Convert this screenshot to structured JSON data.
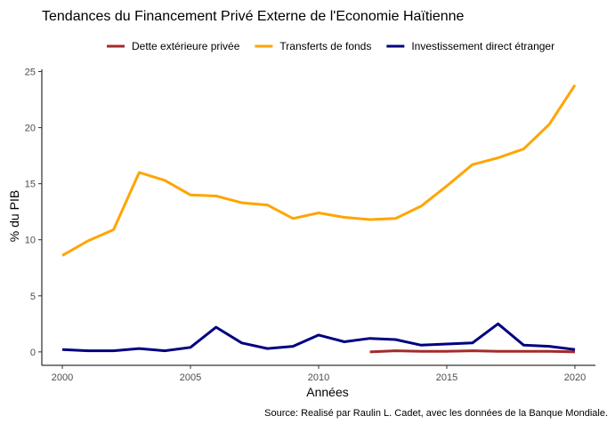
{
  "chart_data": {
    "type": "line",
    "title": "Tendances du Financement Privé Externe de l'Economie Haïtienne",
    "xlabel": "Années",
    "ylabel": "% du PIB",
    "caption": "Source: Realisé par Raulin L. Cadet, avec les données de la Banque Mondiale.",
    "xlim": [
      1999.2,
      2020.8
    ],
    "ylim": [
      -1.2,
      25.2
    ],
    "xticks": [
      2000,
      2005,
      2010,
      2015,
      2020
    ],
    "yticks": [
      0,
      5,
      10,
      15,
      20,
      25
    ],
    "xtick_labels": [
      "2000",
      "2005",
      "2010",
      "2015",
      "2020"
    ],
    "ytick_labels": [
      "0",
      "5",
      "10",
      "15",
      "20",
      "25"
    ],
    "grid": false,
    "legend_position": "top",
    "series": [
      {
        "name": "Dette extérieure privée",
        "color": "#a52a2a",
        "x": [
          2012,
          2013,
          2014,
          2015,
          2016,
          2017,
          2018,
          2019,
          2020
        ],
        "y": [
          0.0,
          0.1,
          0.05,
          0.05,
          0.1,
          0.05,
          0.05,
          0.05,
          0.0
        ]
      },
      {
        "name": "Transferts de fonds",
        "color": "#ffa500",
        "x": [
          2000,
          2001,
          2002,
          2003,
          2004,
          2005,
          2006,
          2007,
          2008,
          2009,
          2010,
          2011,
          2012,
          2013,
          2014,
          2015,
          2016,
          2017,
          2018,
          2019,
          2020
        ],
        "y": [
          8.6,
          9.9,
          10.9,
          16.0,
          15.3,
          14.0,
          13.9,
          13.3,
          13.1,
          11.9,
          12.4,
          12.0,
          11.8,
          11.9,
          13.0,
          14.8,
          16.7,
          17.3,
          18.1,
          20.3,
          23.8
        ]
      },
      {
        "name": "Investissement direct étranger",
        "color": "#000080",
        "x": [
          2000,
          2001,
          2002,
          2003,
          2004,
          2005,
          2006,
          2007,
          2008,
          2009,
          2010,
          2011,
          2012,
          2013,
          2014,
          2015,
          2016,
          2017,
          2018,
          2019,
          2020
        ],
        "y": [
          0.2,
          0.1,
          0.1,
          0.3,
          0.1,
          0.4,
          2.2,
          0.8,
          0.3,
          0.5,
          1.5,
          0.9,
          1.2,
          1.1,
          0.6,
          0.7,
          0.8,
          2.5,
          0.6,
          0.5,
          0.2
        ]
      }
    ]
  }
}
